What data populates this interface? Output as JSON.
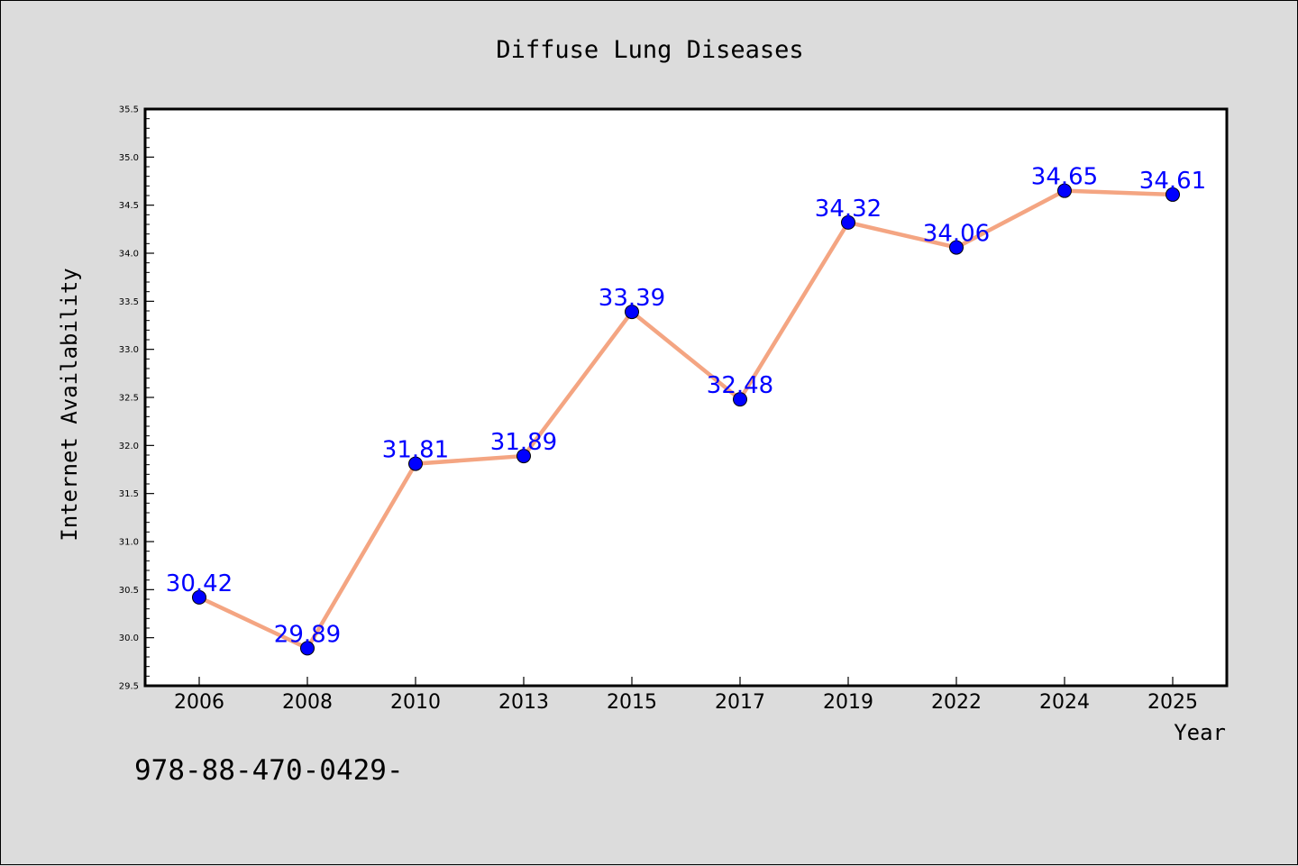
{
  "chart_data": {
    "type": "line",
    "title": "Diffuse Lung Diseases",
    "xlabel": "Year",
    "ylabel": "Internet Availability",
    "categories": [
      "2006",
      "2008",
      "2010",
      "2013",
      "2015",
      "2017",
      "2019",
      "2022",
      "2024",
      "2025"
    ],
    "series": [
      {
        "values": [
          30.42,
          29.89,
          31.81,
          31.89,
          33.39,
          32.48,
          34.32,
          34.06,
          34.65,
          34.61
        ],
        "labels": [
          "30.42",
          "29.89",
          "31.81",
          "31.89",
          "33.39",
          "32.48",
          "34.32",
          "34.06",
          "34.65",
          "34.61"
        ]
      }
    ],
    "ylim": [
      29.5,
      35.5
    ],
    "yticks": [
      "29.5",
      "30.0",
      "30.5",
      "31.0",
      "31.5",
      "32.0",
      "32.5",
      "33.0",
      "33.5",
      "34.0",
      "34.5",
      "35.0",
      "35.5"
    ],
    "grid": false,
    "legend": "none",
    "colors": {
      "line": "#f4a582",
      "marker": "#0000ff",
      "label": "#0000ff"
    }
  },
  "footer_text": "978-88-470-0429-"
}
